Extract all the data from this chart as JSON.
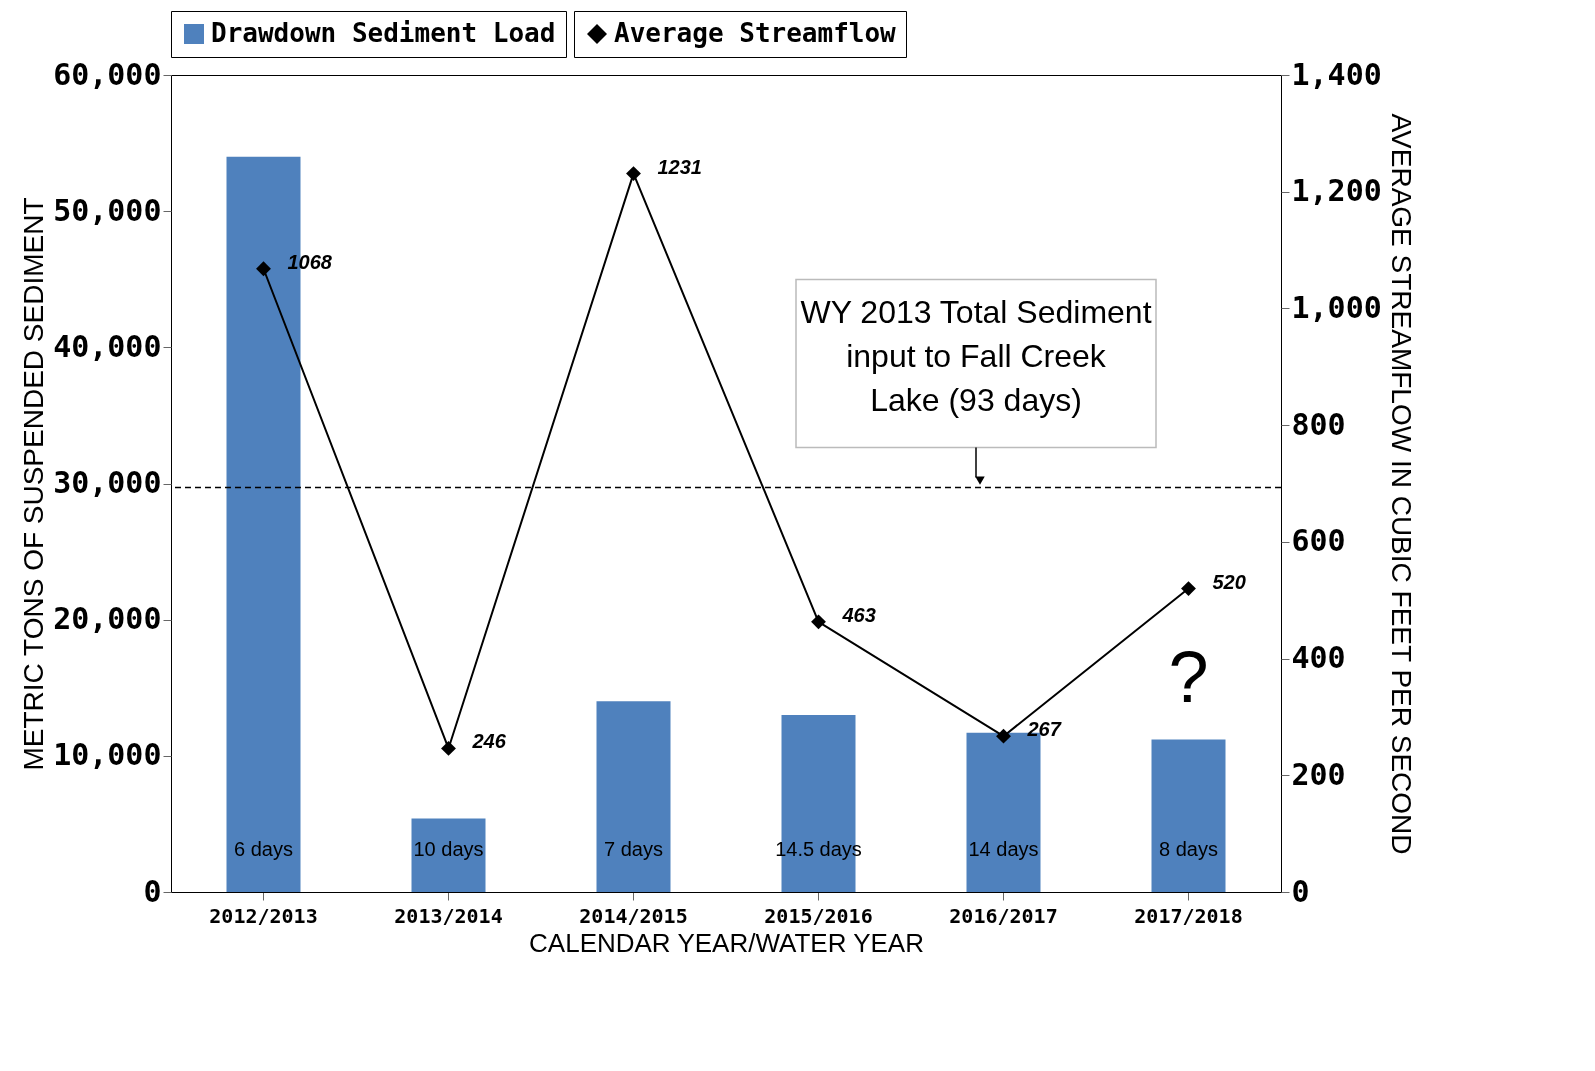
{
  "chart_data": {
    "type": "bar",
    "xlabel": "CALENDAR YEAR/WATER YEAR",
    "ylabel": "METRIC TONS OF SUSPENDED SEDIMENT",
    "y2label": "AVERAGE STREAMFLOW IN CUBIC FEET PER SECOND",
    "categories": [
      "2012/2013",
      "2013/2014",
      "2014/2015",
      "2015/2016",
      "2016/2017",
      "2017/2018"
    ],
    "series": [
      {
        "name": "Drawdown Sediment Load",
        "color": "#4f81bd",
        "values": [
          54000,
          5400,
          14000,
          13000,
          11700,
          11200
        ]
      },
      {
        "name": "Average Streamflow",
        "type": "line",
        "axis": "y2",
        "color": "#000000",
        "marker": "diamond",
        "values": [
          1068,
          246,
          1231,
          463,
          267,
          520
        ],
        "value_labels": [
          "1068",
          "246",
          "1231",
          "463",
          "267",
          "520"
        ]
      }
    ],
    "ylim": [
      0,
      60000
    ],
    "yticks": [
      0,
      {
        "value": 10000,
        "label": "10,000"
      },
      {
        "value": 20000,
        "label": "20,000"
      },
      {
        "value": 30000,
        "label": "30,000"
      },
      {
        "value": 40000,
        "label": "40,000"
      },
      {
        "value": 50000,
        "label": "50,000"
      },
      {
        "value": 60000,
        "label": "60,000"
      }
    ],
    "y2lim": [
      0,
      1400
    ],
    "y2ticks": [
      0,
      200,
      400,
      600,
      800,
      {
        "value": 1000,
        "label": "1,000"
      },
      {
        "value": 1200,
        "label": "1,200"
      },
      {
        "value": 1400,
        "label": "1,400"
      }
    ],
    "ref_lines": [
      {
        "axis": "y",
        "value": 29700,
        "line_style": "dashed",
        "label": "WY 2013 Total Sediment input to Fall Creek Lake (93 days)"
      }
    ],
    "annotations": [
      "6 days",
      "10 days",
      "7 days",
      "14.5 days",
      "14 days",
      "8 days",
      "?"
    ],
    "legend": "top",
    "grid": false
  }
}
